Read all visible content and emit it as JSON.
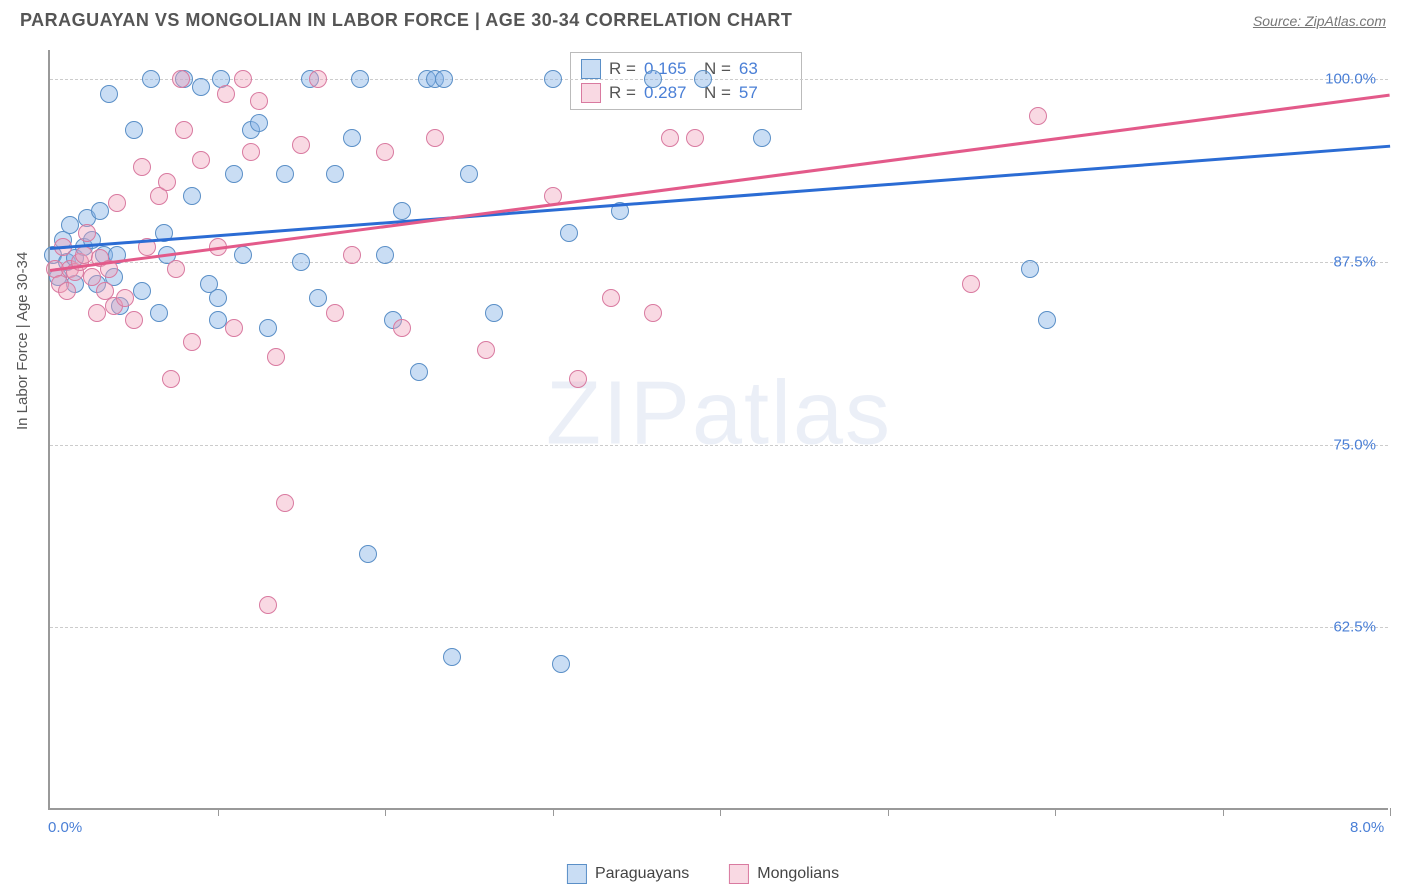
{
  "title": "PARAGUAYAN VS MONGOLIAN IN LABOR FORCE | AGE 30-34 CORRELATION CHART",
  "source_label": "Source: ZipAtlas.com",
  "y_axis_title": "In Labor Force | Age 30-34",
  "watermark_zip": "ZIP",
  "watermark_atlas": "atlas",
  "chart": {
    "type": "scatter",
    "xlim": [
      0.0,
      8.0
    ],
    "ylim": [
      50.0,
      102.0
    ],
    "x_ticks": [
      0.0,
      8.0
    ],
    "x_tick_labels": [
      "0.0%",
      "8.0%"
    ],
    "y_ticks": [
      62.5,
      75.0,
      87.5,
      100.0
    ],
    "y_tick_labels": [
      "62.5%",
      "75.0%",
      "87.5%",
      "100.0%"
    ],
    "grid_color": "#cccccc",
    "axis_color": "#999999",
    "background_color": "#ffffff",
    "series": [
      {
        "name": "Paraguayans",
        "fill": "rgba(135,180,230,0.45)",
        "stroke": "#5a8fc7",
        "trend_color": "#2b6cd4",
        "r_value": "0.165",
        "n_value": "63",
        "trend_start": [
          0.0,
          88.5
        ],
        "trend_end": [
          8.0,
          95.5
        ],
        "points": [
          [
            0.02,
            88
          ],
          [
            0.05,
            86.5
          ],
          [
            0.08,
            89
          ],
          [
            0.1,
            87.5
          ],
          [
            0.12,
            90
          ],
          [
            0.15,
            86
          ],
          [
            0.15,
            87.8
          ],
          [
            0.2,
            88.5
          ],
          [
            0.22,
            90.5
          ],
          [
            0.25,
            89
          ],
          [
            0.28,
            86
          ],
          [
            0.3,
            91
          ],
          [
            0.32,
            88
          ],
          [
            0.35,
            99
          ],
          [
            0.38,
            86.5
          ],
          [
            0.4,
            88
          ],
          [
            0.42,
            84.5
          ],
          [
            0.5,
            96.5
          ],
          [
            0.55,
            85.5
          ],
          [
            0.6,
            100
          ],
          [
            0.65,
            84
          ],
          [
            0.68,
            89.5
          ],
          [
            0.7,
            88
          ],
          [
            0.8,
            100
          ],
          [
            0.85,
            92
          ],
          [
            0.9,
            99.5
          ],
          [
            0.95,
            86
          ],
          [
            1.0,
            83.5
          ],
          [
            1.0,
            85
          ],
          [
            1.02,
            100
          ],
          [
            1.1,
            93.5
          ],
          [
            1.15,
            88
          ],
          [
            1.2,
            96.5
          ],
          [
            1.25,
            97
          ],
          [
            1.3,
            83
          ],
          [
            1.4,
            93.5
          ],
          [
            1.5,
            87.5
          ],
          [
            1.55,
            100
          ],
          [
            1.6,
            85
          ],
          [
            1.7,
            93.5
          ],
          [
            1.8,
            96
          ],
          [
            1.85,
            100
          ],
          [
            1.9,
            67.5
          ],
          [
            2.0,
            88
          ],
          [
            2.05,
            83.5
          ],
          [
            2.1,
            91
          ],
          [
            2.2,
            80
          ],
          [
            2.25,
            100
          ],
          [
            2.3,
            100
          ],
          [
            2.35,
            100
          ],
          [
            2.4,
            60.5
          ],
          [
            2.5,
            93.5
          ],
          [
            2.65,
            84
          ],
          [
            3.0,
            100
          ],
          [
            3.05,
            60
          ],
          [
            3.1,
            89.5
          ],
          [
            3.4,
            91
          ],
          [
            3.6,
            100
          ],
          [
            3.9,
            100
          ],
          [
            4.25,
            96
          ],
          [
            5.85,
            87
          ],
          [
            5.95,
            83.5
          ]
        ]
      },
      {
        "name": "Mongolians",
        "fill": "rgba(240,160,185,0.4)",
        "stroke": "#d97aa0",
        "trend_color": "#e35a8a",
        "r_value": "0.287",
        "n_value": "57",
        "trend_start": [
          0.0,
          87.0
        ],
        "trend_end": [
          8.0,
          99.0
        ],
        "points": [
          [
            0.03,
            87
          ],
          [
            0.06,
            86
          ],
          [
            0.08,
            88.5
          ],
          [
            0.1,
            85.5
          ],
          [
            0.12,
            87
          ],
          [
            0.15,
            86.8
          ],
          [
            0.18,
            87.5
          ],
          [
            0.2,
            88
          ],
          [
            0.22,
            89.5
          ],
          [
            0.25,
            86.5
          ],
          [
            0.28,
            84
          ],
          [
            0.3,
            87.8
          ],
          [
            0.33,
            85.5
          ],
          [
            0.35,
            87
          ],
          [
            0.38,
            84.5
          ],
          [
            0.4,
            91.5
          ],
          [
            0.45,
            85
          ],
          [
            0.5,
            83.5
          ],
          [
            0.55,
            94
          ],
          [
            0.58,
            88.5
          ],
          [
            0.65,
            92
          ],
          [
            0.7,
            93
          ],
          [
            0.72,
            79.5
          ],
          [
            0.75,
            87
          ],
          [
            0.78,
            100
          ],
          [
            0.8,
            96.5
          ],
          [
            0.85,
            82
          ],
          [
            0.9,
            94.5
          ],
          [
            1.0,
            88.5
          ],
          [
            1.05,
            99
          ],
          [
            1.1,
            83
          ],
          [
            1.15,
            100
          ],
          [
            1.2,
            95
          ],
          [
            1.25,
            98.5
          ],
          [
            1.3,
            64
          ],
          [
            1.35,
            81
          ],
          [
            1.4,
            71
          ],
          [
            1.5,
            95.5
          ],
          [
            1.6,
            100
          ],
          [
            1.7,
            84
          ],
          [
            1.8,
            88
          ],
          [
            2.0,
            95
          ],
          [
            2.1,
            83
          ],
          [
            2.3,
            96
          ],
          [
            2.6,
            81.5
          ],
          [
            3.0,
            92
          ],
          [
            3.15,
            79.5
          ],
          [
            3.35,
            85
          ],
          [
            3.6,
            84
          ],
          [
            3.7,
            96
          ],
          [
            3.85,
            96
          ],
          [
            5.5,
            86
          ],
          [
            5.9,
            97.5
          ]
        ]
      }
    ]
  },
  "stats_legend": {
    "r_label": "R  =",
    "n_label": "N  ="
  },
  "bottom_legend": {
    "series1": "Paraguayans",
    "series2": "Mongolians"
  }
}
